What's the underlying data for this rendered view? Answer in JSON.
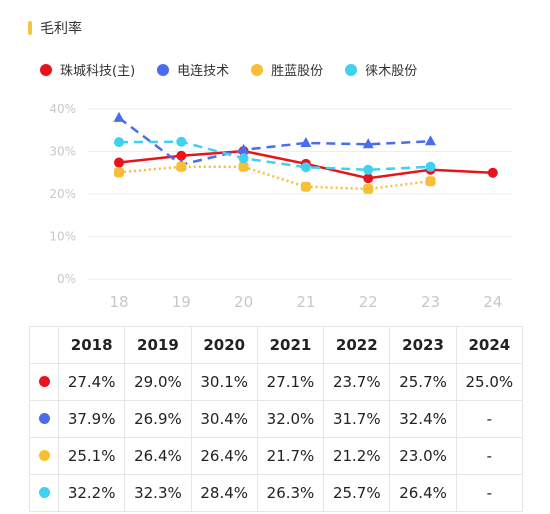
{
  "title": "毛利率",
  "colors": {
    "accent": "#f5c542"
  },
  "legend": [
    {
      "label": "珠城科技(主)",
      "color": "#e8141b"
    },
    {
      "label": "电连技术",
      "color": "#4a6cf0"
    },
    {
      "label": "胜蓝股份",
      "color": "#f7be36"
    },
    {
      "label": "徕木股份",
      "color": "#3dd2f0"
    }
  ],
  "chart_data": {
    "type": "line",
    "x": [
      "18",
      "19",
      "20",
      "21",
      "22",
      "23",
      "24"
    ],
    "ylim": [
      0,
      40
    ],
    "yticks": [
      "0%",
      "10%",
      "20%",
      "30%",
      "40%"
    ],
    "grid": true,
    "series": [
      {
        "name": "珠城科技(主)",
        "color": "#e8141b",
        "style": "solid",
        "marker": "circle",
        "values": [
          27.4,
          29.0,
          30.1,
          27.1,
          23.7,
          25.7,
          25.0
        ]
      },
      {
        "name": "电连技术",
        "color": "#4a6cf0",
        "style": "dashed",
        "marker": "triangle",
        "values": [
          37.9,
          26.9,
          30.4,
          32.0,
          31.7,
          32.4,
          null
        ]
      },
      {
        "name": "胜蓝股份",
        "color": "#f7be36",
        "style": "dotted",
        "marker": "square",
        "values": [
          25.1,
          26.4,
          26.4,
          21.7,
          21.2,
          23.0,
          null
        ]
      },
      {
        "name": "徕木股份",
        "color": "#3dd2f0",
        "style": "dashed",
        "marker": "circle",
        "values": [
          32.2,
          32.3,
          28.4,
          26.3,
          25.7,
          26.4,
          null
        ]
      }
    ]
  },
  "table": {
    "headers": [
      "2018",
      "2019",
      "2020",
      "2021",
      "2022",
      "2023",
      "2024"
    ],
    "rows": [
      {
        "color": "#e8141b",
        "cells": [
          "27.4%",
          "29.0%",
          "30.1%",
          "27.1%",
          "23.7%",
          "25.7%",
          "25.0%"
        ]
      },
      {
        "color": "#4a6cf0",
        "cells": [
          "37.9%",
          "26.9%",
          "30.4%",
          "32.0%",
          "31.7%",
          "32.4%",
          "-"
        ]
      },
      {
        "color": "#f7be36",
        "cells": [
          "25.1%",
          "26.4%",
          "26.4%",
          "21.7%",
          "21.2%",
          "23.0%",
          "-"
        ]
      },
      {
        "color": "#3dd2f0",
        "cells": [
          "32.2%",
          "32.3%",
          "28.4%",
          "26.3%",
          "25.7%",
          "26.4%",
          "-"
        ]
      }
    ]
  }
}
